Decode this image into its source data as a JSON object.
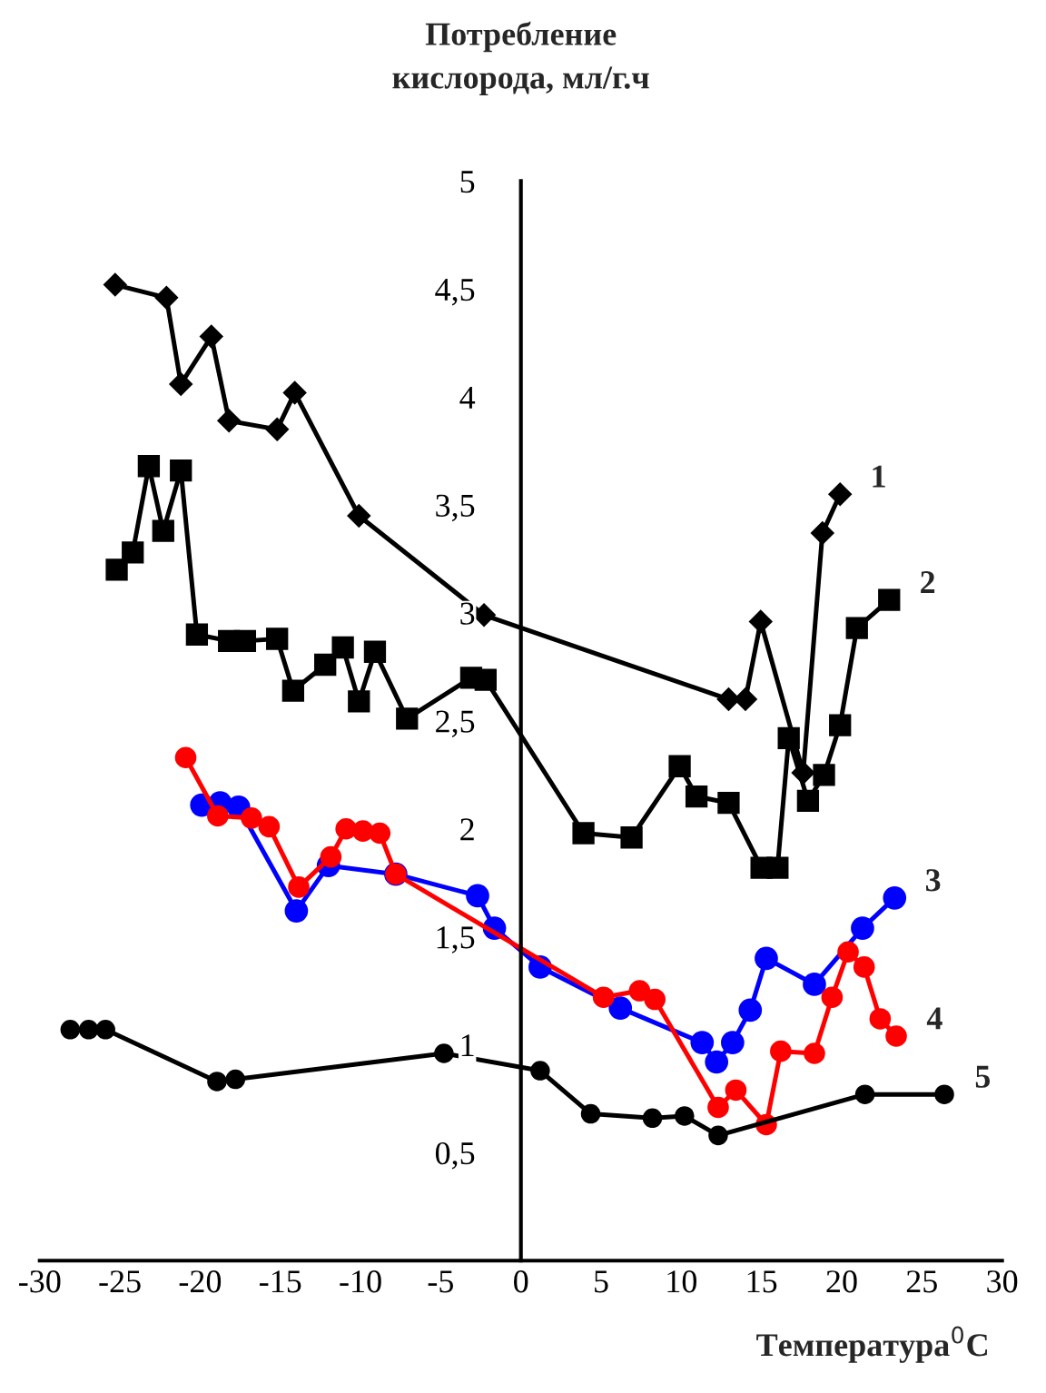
{
  "chart_data": {
    "type": "line",
    "ylabel": "Потребление\nкислорода, мл/г.ч",
    "xlabel": "Температура$^{0}$C",
    "xlim": [
      -30,
      30
    ],
    "ylim": [
      0,
      5
    ],
    "xticks": [
      -30,
      -25,
      -20,
      -15,
      -10,
      -5,
      0,
      5,
      10,
      15,
      20,
      25,
      30
    ],
    "yticks": [
      {
        "value": 0.5,
        "label": "0,5"
      },
      {
        "value": 1,
        "label": "1"
      },
      {
        "value": 1.5,
        "label": "1,5"
      },
      {
        "value": 2,
        "label": "2"
      },
      {
        "value": 2.5,
        "label": "2,5"
      },
      {
        "value": 3,
        "label": "3"
      },
      {
        "value": 3.5,
        "label": "3,5"
      },
      {
        "value": 4,
        "label": "4"
      },
      {
        "value": 4.5,
        "label": "4,5"
      },
      {
        "value": 5,
        "label": "5"
      }
    ],
    "grid": false,
    "legend": false,
    "series": [
      {
        "color": "#000000",
        "marker": "diamond",
        "x": [
          -25.3,
          -22.1,
          -21.2,
          -19.3,
          -18.2,
          -15.2,
          -14.1,
          -10.1,
          -2.3,
          12.95,
          14.0,
          14.95,
          17.6,
          18.8,
          19.9
        ],
        "values": [
          4.52,
          4.46,
          4.06,
          4.28,
          3.89,
          3.85,
          4.02,
          3.45,
          2.99,
          2.6,
          2.6,
          2.96,
          2.26,
          3.37,
          3.55
        ]
      },
      {
        "color": "#000000",
        "marker": "square",
        "x": [
          -25.2,
          -24.2,
          -23.2,
          -22.3,
          -21.2,
          -20.2,
          -18.2,
          -17.2,
          -15.2,
          -14.2,
          -12.2,
          -11.1,
          -10.1,
          -9.1,
          -7.1,
          -3.1,
          -2.2,
          3.9,
          6.9,
          9.9,
          10.95,
          12.95,
          15.0,
          16.0,
          16.7,
          17.9,
          18.9,
          19.9,
          20.95,
          22.96
        ],
        "values": [
          3.2,
          3.28,
          3.68,
          3.38,
          3.66,
          2.9,
          2.87,
          2.87,
          2.88,
          2.64,
          2.76,
          2.84,
          2.59,
          2.82,
          2.51,
          2.7,
          2.69,
          1.98,
          1.96,
          2.29,
          2.15,
          2.12,
          1.82,
          1.82,
          2.42,
          2.13,
          2.25,
          2.48,
          2.93,
          3.06
        ]
      },
      {
        "color": "#0000ff",
        "marker": "circle",
        "x": [
          -19.9,
          -18.75,
          -17.6,
          -14.0,
          -12.0,
          -7.8,
          -2.7,
          -1.65,
          1.2,
          6.2,
          11.3,
          12.2,
          13.2,
          14.3,
          15.3,
          18.3,
          21.3,
          23.3
        ],
        "values": [
          2.11,
          2.12,
          2.1,
          1.62,
          1.83,
          1.79,
          1.69,
          1.54,
          1.36,
          1.17,
          1.01,
          0.92,
          1.01,
          1.16,
          1.4,
          1.28,
          1.54,
          1.68
        ]
      },
      {
        "color": "#ff0000",
        "marker": "circle",
        "x": [
          -20.9,
          -18.9,
          -16.8,
          -15.7,
          -13.85,
          -11.85,
          -10.9,
          -9.85,
          -8.8,
          -7.8,
          5.15,
          7.4,
          8.35,
          12.3,
          13.4,
          15.3,
          16.2,
          18.3,
          19.4,
          20.4,
          21.4,
          22.4,
          23.4
        ],
        "values": [
          2.33,
          2.06,
          2.05,
          2.01,
          1.73,
          1.87,
          2.0,
          1.99,
          1.98,
          1.79,
          1.22,
          1.25,
          1.21,
          0.71,
          0.79,
          0.63,
          0.97,
          0.96,
          1.22,
          1.43,
          1.36,
          1.12,
          1.04
        ]
      },
      {
        "color": "#000000",
        "marker": "circle",
        "x": [
          -28.1,
          -26.95,
          -25.9,
          -18.95,
          -17.8,
          -4.8,
          1.2,
          4.35,
          8.2,
          10.2,
          12.3,
          21.45,
          26.4
        ],
        "values": [
          1.07,
          1.07,
          1.07,
          0.83,
          0.84,
          0.96,
          0.88,
          0.68,
          0.66,
          0.67,
          0.58,
          0.77,
          0.77
        ]
      }
    ],
    "annotations": [
      {
        "text": "1",
        "x": 19.9,
        "y": 3.55
      },
      {
        "text": "2",
        "x": 22.96,
        "y": 3.06
      },
      {
        "text": "3",
        "x": 23.3,
        "y": 1.68
      },
      {
        "text": "4",
        "x": 23.4,
        "y": 1.04
      },
      {
        "text": "5",
        "x": 26.4,
        "y": 0.77
      }
    ]
  }
}
